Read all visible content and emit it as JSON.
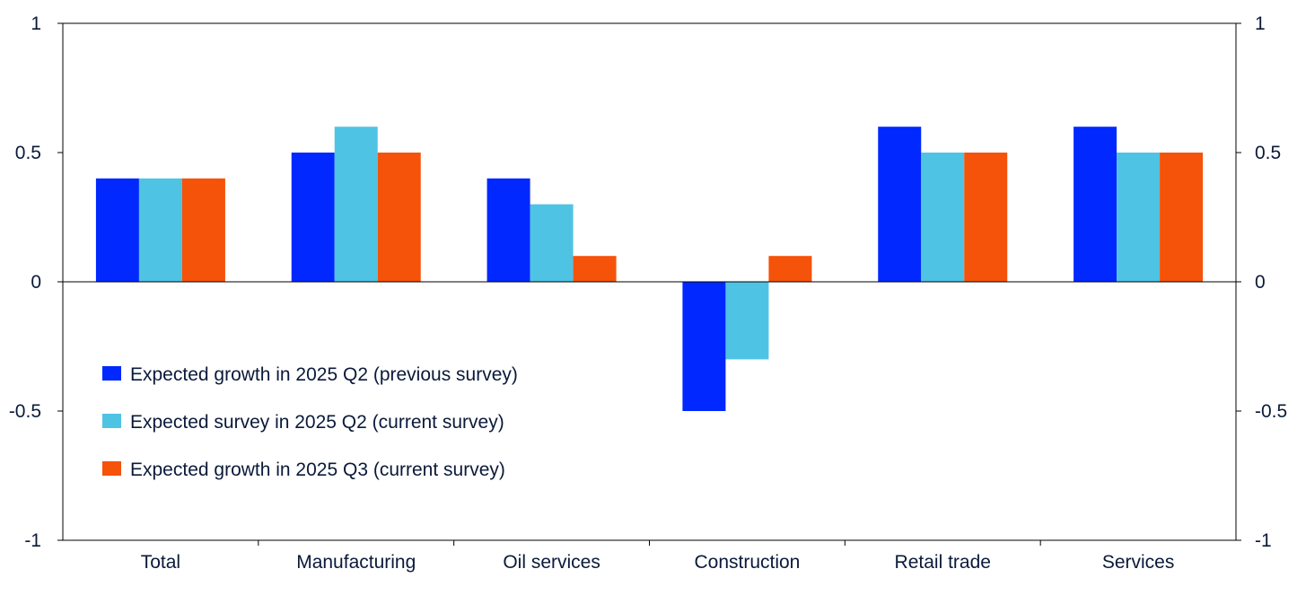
{
  "chart_data": {
    "type": "bar",
    "title": "",
    "xlabel": "",
    "ylabel": "",
    "ylim": [
      -1,
      1
    ],
    "yticks": [
      1,
      0.5,
      0,
      -0.5,
      -1
    ],
    "ytick_labels": [
      "1",
      "0.5",
      "0",
      "-0.5",
      "-1"
    ],
    "categories": [
      "Total",
      "Manufacturing",
      "Oil services",
      "Construction",
      "Retail trade",
      "Services"
    ],
    "series": [
      {
        "name": "Expected growth in 2025 Q2 (previous survey)",
        "color": "#0028FF",
        "values": [
          0.4,
          0.5,
          0.4,
          -0.5,
          0.6,
          0.6
        ]
      },
      {
        "name": "Expected survey in 2025 Q2 (current survey)",
        "color": "#4FC3E3",
        "values": [
          0.4,
          0.6,
          0.3,
          -0.3,
          0.5,
          0.5
        ]
      },
      {
        "name": "Expected growth in 2025 Q3 (current survey)",
        "color": "#F5520A",
        "values": [
          0.4,
          0.5,
          0.1,
          0.1,
          0.5,
          0.5
        ]
      }
    ],
    "legend_position": "lower-left",
    "grid": false
  }
}
